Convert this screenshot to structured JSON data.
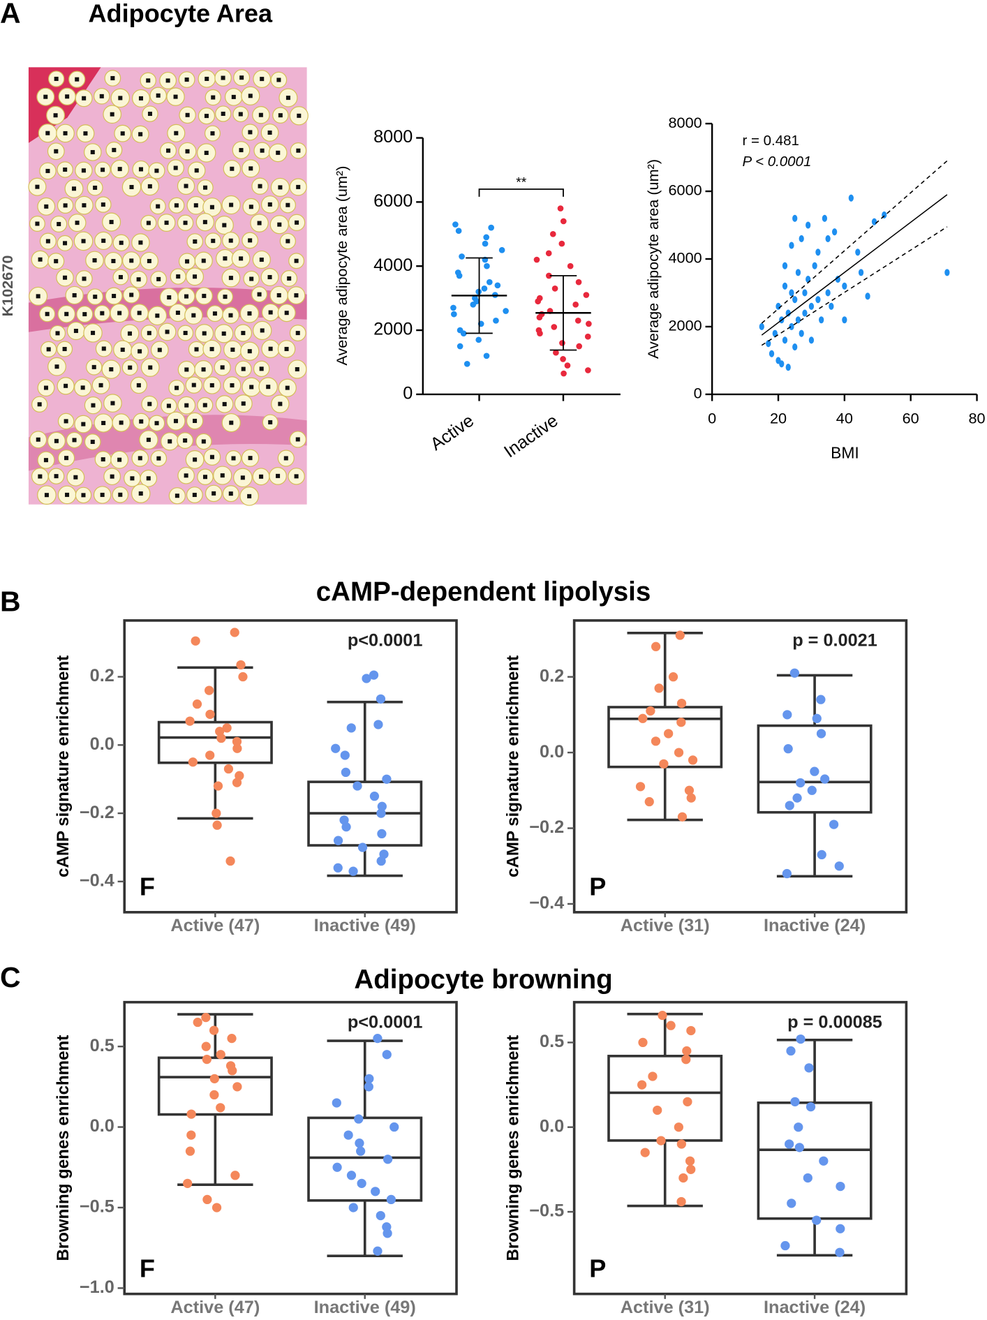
{
  "panels": [
    {
      "label": "A",
      "title": "Adipocyte Area"
    },
    {
      "label": "B",
      "title": "cAMP-dependent lipolysis"
    },
    {
      "label": "C",
      "title": "Adipocyte browning"
    }
  ],
  "image_label": "K102670",
  "chart_data": [
    {
      "type": "dotplot",
      "ylabel": "Average adipocyte area (um²)",
      "categories": [
        "Active",
        "Inactive"
      ],
      "ylim": [
        0,
        8000
      ],
      "yticks": [
        0,
        2000,
        4000,
        6000,
        8000
      ],
      "significance": "**",
      "groups": [
        {
          "color": "#1e8ff0",
          "mean": 3080,
          "sd": 1175,
          "values": [
            5300,
            5200,
            5100,
            4900,
            4700,
            4500,
            4300,
            4200,
            4000,
            3800,
            3700,
            3500,
            3400,
            3300,
            3200,
            3100,
            3000,
            2900,
            2800,
            2700,
            2600,
            2500,
            2300,
            2200,
            2000,
            1900,
            1700,
            1500,
            1200,
            950
          ]
        },
        {
          "color": "#e8283c",
          "mean": 2540,
          "sd": 1160,
          "values": [
            5800,
            5400,
            5000,
            4700,
            4400,
            4200,
            4000,
            3700,
            3500,
            3300,
            3100,
            3000,
            2900,
            2800,
            2600,
            2500,
            2400,
            2300,
            2200,
            2100,
            2000,
            1900,
            1800,
            1600,
            1500,
            1300,
            1100,
            900,
            750,
            650
          ]
        }
      ]
    },
    {
      "type": "scatter",
      "xlabel": "BMI",
      "ylabel": "Average adipocyte area (um²)",
      "r_label": "r = 0.481",
      "p_label": "P < 0.0001",
      "color": "#1e8ff0",
      "xlim": [
        0,
        80
      ],
      "xticks": [
        0,
        20,
        40,
        60,
        80
      ],
      "ylim": [
        0,
        8000
      ],
      "yticks": [
        0,
        2000,
        4000,
        6000,
        8000
      ],
      "x": [
        15,
        17,
        18,
        19,
        20,
        20,
        21,
        21,
        22,
        22,
        22,
        23,
        23,
        24,
        24,
        24,
        25,
        25,
        25,
        26,
        26,
        27,
        27,
        28,
        28,
        29,
        29,
        30,
        30,
        31,
        32,
        32,
        33,
        34,
        35,
        35,
        36,
        37,
        38,
        40,
        40,
        42,
        44,
        45,
        47,
        49,
        52,
        71
      ],
      "values": [
        2000,
        1500,
        1200,
        1800,
        1000,
        2600,
        900,
        2200,
        1600,
        3200,
        3800,
        800,
        2400,
        2000,
        3000,
        4400,
        1400,
        2800,
        5200,
        3600,
        2200,
        1800,
        4600,
        3000,
        2400,
        3400,
        5000,
        2600,
        1600,
        3800,
        2800,
        4200,
        2200,
        5200,
        3000,
        4600,
        2600,
        4800,
        3400,
        3200,
        2200,
        5800,
        4200,
        3600,
        2900,
        5100,
        5300,
        3600
      ],
      "fit": {
        "x": [
          15,
          71
        ],
        "values": [
          1750,
          5900
        ]
      },
      "ci_upper": {
        "x": [
          15,
          71
        ],
        "values": [
          2100,
          6900
        ]
      },
      "ci_lower": {
        "x": [
          15,
          71
        ],
        "values": [
          1450,
          4950
        ]
      }
    },
    {
      "type": "box",
      "ylabel": "cAMP signature enrichment",
      "annotation": "p<0.0001",
      "corner_label": "F",
      "categories": [
        "Active (47)",
        "Inactive (49)"
      ],
      "ylim": [
        -0.49,
        0.365
      ],
      "yticks": [
        0.2,
        {
          "value": 0,
          "label": "0.0"
        },
        {
          "value": -0.2,
          "label": "−0.2"
        },
        {
          "value": -0.4,
          "label": "−0.4"
        }
      ],
      "boxes": [
        {
          "color": "#f4875a",
          "whislo": -0.215,
          "q1": -0.052,
          "med": 0.022,
          "q3": 0.067,
          "whishi": 0.227,
          "points": [
            0.33,
            0.305,
            0.235,
            0.2,
            0.16,
            0.12,
            0.09,
            0.07,
            0.05,
            0.04,
            0.02,
            0.01,
            -0.01,
            -0.03,
            -0.05,
            -0.07,
            -0.09,
            -0.11,
            -0.12,
            -0.2,
            -0.235,
            -0.34
          ]
        },
        {
          "color": "#6495ed",
          "whislo": -0.383,
          "q1": -0.294,
          "med": -0.2,
          "q3": -0.108,
          "whishi": 0.126,
          "points": [
            0.205,
            0.195,
            0.135,
            0.06,
            0.05,
            -0.01,
            -0.03,
            -0.08,
            -0.1,
            -0.12,
            -0.15,
            -0.18,
            -0.2,
            -0.22,
            -0.24,
            -0.26,
            -0.28,
            -0.3,
            -0.32,
            -0.34,
            -0.36,
            -0.37
          ]
        }
      ]
    },
    {
      "type": "box",
      "ylabel": "cAMP signature enrichment",
      "annotation": "p = 0.0021",
      "corner_label": "P",
      "categories": [
        "Active (31)",
        "Inactive (24)"
      ],
      "ylim": [
        -0.422,
        0.349
      ],
      "yticks": [
        0.2,
        {
          "value": 0,
          "label": "0.0"
        },
        {
          "value": -0.2,
          "label": "−0.2"
        },
        {
          "value": -0.4,
          "label": "−0.4"
        }
      ],
      "boxes": [
        {
          "color": "#f4875a",
          "whislo": -0.178,
          "q1": -0.038,
          "med": 0.089,
          "q3": 0.12,
          "whishi": 0.316,
          "points": [
            0.31,
            0.28,
            0.2,
            0.17,
            0.13,
            0.11,
            0.09,
            0.08,
            0.05,
            0.03,
            0,
            -0.02,
            -0.03,
            -0.09,
            -0.1,
            -0.12,
            -0.13,
            -0.17
          ]
        },
        {
          "color": "#6495ed",
          "whislo": -0.327,
          "q1": -0.158,
          "med": -0.078,
          "q3": 0.071,
          "whishi": 0.204,
          "points": [
            0.21,
            0.14,
            0.1,
            0.09,
            0.05,
            0.01,
            -0.05,
            -0.07,
            -0.08,
            -0.1,
            -0.12,
            -0.14,
            -0.19,
            -0.27,
            -0.3,
            -0.32
          ]
        }
      ]
    },
    {
      "type": "box",
      "ylabel": "Browning genes enrichment",
      "annotation": "p<0.0001",
      "corner_label": "F",
      "categories": [
        "Active (47)",
        "Inactive (49)"
      ],
      "ylim": [
        -1.036,
        0.775
      ],
      "yticks": [
        0.5,
        {
          "value": 0,
          "label": "0.0"
        },
        {
          "value": -0.5,
          "label": "−0.5"
        },
        {
          "value": -1,
          "label": "−1.0"
        }
      ],
      "boxes": [
        {
          "color": "#f4875a",
          "whislo": -0.358,
          "q1": 0.078,
          "med": 0.31,
          "q3": 0.43,
          "whishi": 0.7,
          "points": [
            0.68,
            0.65,
            0.6,
            0.55,
            0.5,
            0.45,
            0.42,
            0.38,
            0.35,
            0.3,
            0.25,
            0.2,
            0.12,
            0.08,
            -0.05,
            -0.15,
            -0.3,
            -0.35,
            -0.45,
            -0.5
          ]
        },
        {
          "color": "#6495ed",
          "whislo": -0.8,
          "q1": -0.456,
          "med": -0.19,
          "q3": 0.057,
          "whishi": 0.535,
          "points": [
            0.55,
            0.45,
            0.3,
            0.25,
            0.15,
            0.05,
            0,
            -0.05,
            -0.1,
            -0.15,
            -0.2,
            -0.25,
            -0.3,
            -0.35,
            -0.4,
            -0.45,
            -0.5,
            -0.55,
            -0.62,
            -0.66,
            -0.77
          ]
        }
      ]
    },
    {
      "type": "box",
      "ylabel": "Browning genes enrichment",
      "annotation": "p = 0.00085",
      "corner_label": "P",
      "categories": [
        "Active (31)",
        "Inactive (24)"
      ],
      "ylim": [
        -0.985,
        0.738
      ],
      "yticks": [
        0.5,
        {
          "value": 0,
          "label": "0.0"
        },
        {
          "value": -0.5,
          "label": "−0.5"
        }
      ],
      "boxes": [
        {
          "color": "#f4875a",
          "whislo": -0.465,
          "q1": -0.079,
          "med": 0.203,
          "q3": 0.42,
          "whishi": 0.668,
          "points": [
            0.66,
            0.6,
            0.57,
            0.5,
            0.45,
            0.4,
            0.3,
            0.25,
            0.15,
            0.1,
            0,
            -0.08,
            -0.1,
            -0.15,
            -0.2,
            -0.25,
            -0.3,
            -0.44
          ]
        },
        {
          "color": "#6495ed",
          "whislo": -0.757,
          "q1": -0.54,
          "med": -0.134,
          "q3": 0.144,
          "whishi": 0.515,
          "points": [
            0.52,
            0.45,
            0.35,
            0.15,
            0.12,
            0,
            -0.1,
            -0.12,
            -0.2,
            -0.3,
            -0.35,
            -0.45,
            -0.55,
            -0.6,
            -0.7,
            -0.74
          ]
        }
      ]
    }
  ]
}
